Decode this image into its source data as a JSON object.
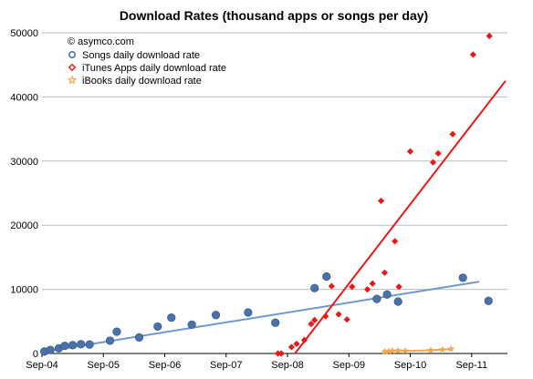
{
  "chart_data": {
    "type": "scatter",
    "title": "Download Rates (thousand apps or songs per day)",
    "annotation": "© asymco.com",
    "xlabel": "",
    "ylabel": "",
    "x_ticks": [
      "Sep-04",
      "Sep-05",
      "Sep-06",
      "Sep-07",
      "Sep-08",
      "Sep-09",
      "Sep-10",
      "Sep-11"
    ],
    "x_range": [
      "2004-09",
      "2012-04"
    ],
    "ylim": [
      0,
      50000
    ],
    "y_ticks": [
      0,
      10000,
      20000,
      30000,
      40000,
      50000
    ],
    "grid": true,
    "legend_position": "top-left",
    "series": [
      {
        "name": "Songs daily download rate",
        "marker": "circle",
        "color": "#4a72a8",
        "trend_color": "#6f98d1",
        "points": [
          [
            "2004-09-15",
            300
          ],
          [
            "2004-10-20",
            550
          ],
          [
            "2004-12-10",
            800
          ],
          [
            "2005-01-15",
            1200
          ],
          [
            "2005-03-01",
            1300
          ],
          [
            "2005-04-20",
            1450
          ],
          [
            "2005-06-10",
            1400
          ],
          [
            "2005-10-10",
            2000
          ],
          [
            "2005-11-20",
            3400
          ],
          [
            "2006-04-01",
            2500
          ],
          [
            "2006-07-20",
            4200
          ],
          [
            "2006-10-10",
            5600
          ],
          [
            "2007-02-10",
            4500
          ],
          [
            "2007-07-01",
            6000
          ],
          [
            "2008-01-10",
            6400
          ],
          [
            "2008-06-20",
            4800
          ],
          [
            "2009-02-10",
            10200
          ],
          [
            "2009-04-20",
            12000
          ],
          [
            "2010-02-15",
            8500
          ],
          [
            "2010-04-15",
            9200
          ],
          [
            "2010-06-20",
            8100
          ],
          [
            "2011-07-10",
            11800
          ],
          [
            "2011-12-10",
            8200
          ]
        ],
        "trend": [
          [
            "2004-09-15",
            300
          ],
          [
            "2011-10-15",
            11200
          ]
        ]
      },
      {
        "name": "iTunes Apps daily download rate",
        "marker": "diamond",
        "color": "#e8191b",
        "trend_color": "#e8191b",
        "points": [
          [
            "2008-07-05",
            0
          ],
          [
            "2008-07-25",
            0
          ],
          [
            "2008-09-25",
            1000
          ],
          [
            "2008-10-25",
            1500
          ],
          [
            "2008-12-10",
            2100
          ],
          [
            "2009-01-20",
            4600
          ],
          [
            "2009-02-10",
            5200
          ],
          [
            "2009-04-15",
            5800
          ],
          [
            "2009-05-20",
            10500
          ],
          [
            "2009-07-01",
            6100
          ],
          [
            "2009-08-20",
            5300
          ],
          [
            "2009-09-20",
            10400
          ],
          [
            "2009-12-20",
            10000
          ],
          [
            "2010-01-20",
            10900
          ],
          [
            "2010-03-10",
            23800
          ],
          [
            "2010-04-01",
            12600
          ],
          [
            "2010-06-01",
            17500
          ],
          [
            "2010-06-25",
            10400
          ],
          [
            "2010-09-01",
            31500
          ],
          [
            "2011-01-15",
            29800
          ],
          [
            "2011-02-15",
            31200
          ],
          [
            "2011-05-10",
            34200
          ],
          [
            "2011-09-10",
            46600
          ],
          [
            "2011-12-15",
            49500
          ]
        ],
        "trend": [
          [
            "2008-09-01",
            -1500
          ],
          [
            "2012-03-20",
            42500
          ]
        ]
      },
      {
        "name": "iBooks daily download rate",
        "marker": "star",
        "color": "#f0a752",
        "trend_color": "#f0a752",
        "points": [
          [
            "2010-04-01",
            300
          ],
          [
            "2010-04-25",
            350
          ],
          [
            "2010-05-15",
            400
          ],
          [
            "2010-06-20",
            450
          ],
          [
            "2010-08-01",
            400
          ],
          [
            "2011-01-01",
            500
          ],
          [
            "2011-03-10",
            600
          ],
          [
            "2011-05-01",
            700
          ]
        ],
        "trend": [
          [
            "2010-04-01",
            300
          ],
          [
            "2010-05-15",
            400
          ],
          [
            "2010-06-20",
            450
          ],
          [
            "2010-08-01",
            400
          ],
          [
            "2011-01-01",
            500
          ],
          [
            "2011-03-10",
            600
          ],
          [
            "2011-05-01",
            700
          ]
        ]
      }
    ]
  }
}
